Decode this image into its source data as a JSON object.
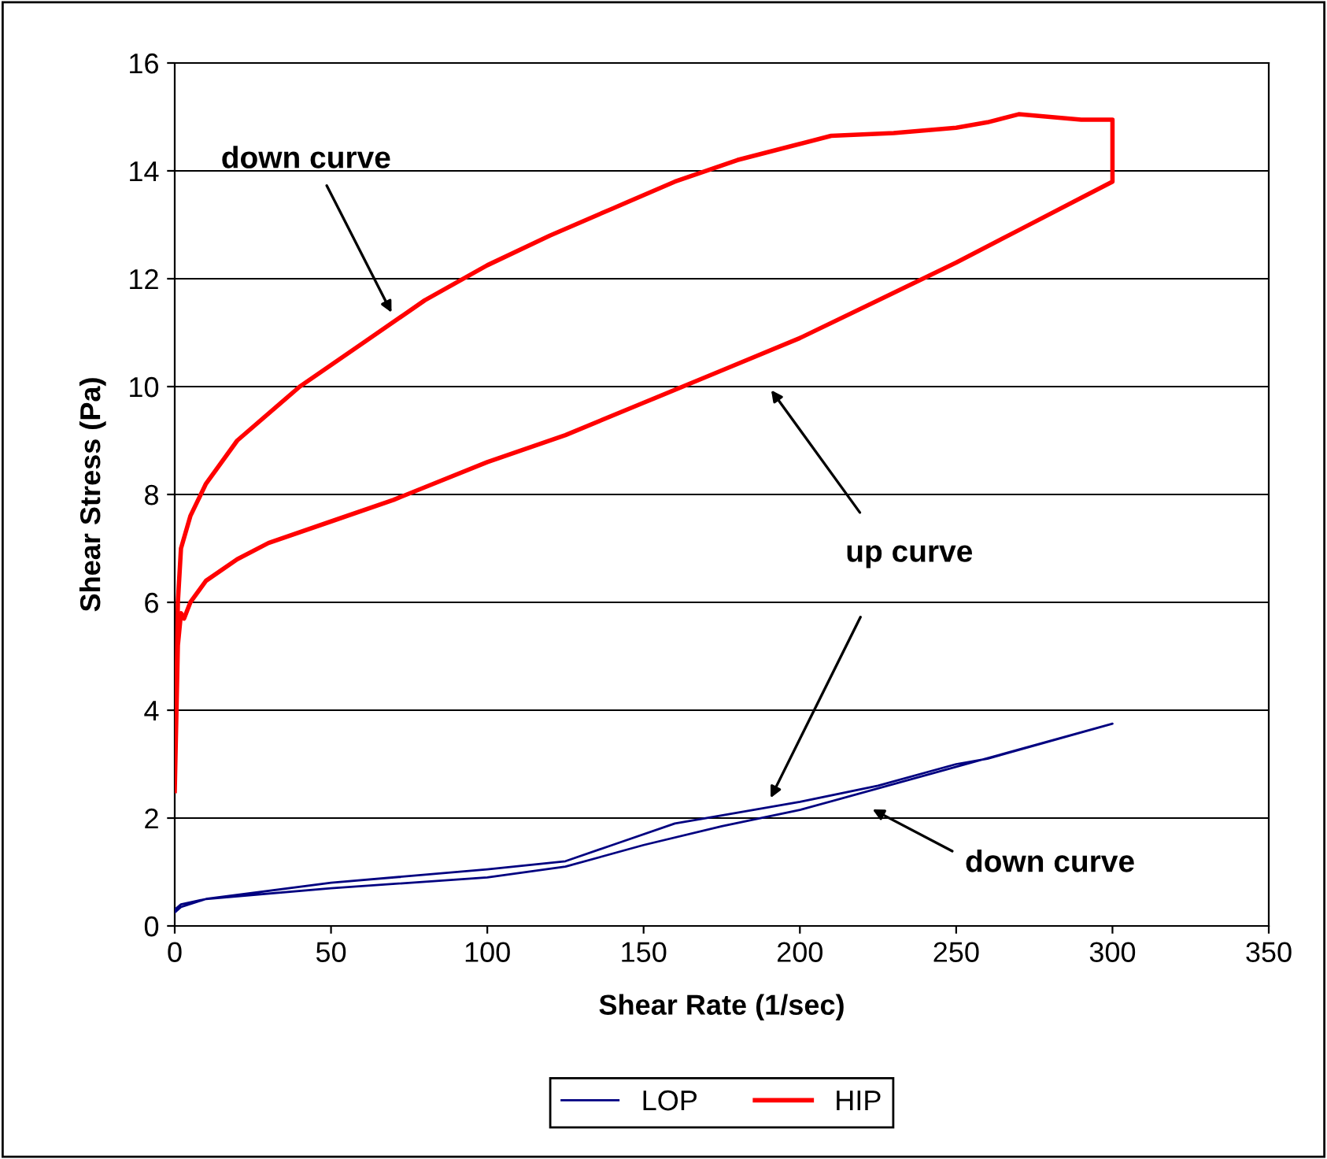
{
  "chart_data": {
    "type": "line",
    "xlabel": "Shear Rate (1/sec)",
    "ylabel": "Shear Stress (Pa)",
    "xlim": [
      0,
      350
    ],
    "xticks": [
      0,
      50,
      100,
      150,
      200,
      250,
      300,
      350
    ],
    "ylim": [
      0,
      16
    ],
    "yticks": [
      0,
      2,
      4,
      6,
      8,
      10,
      12,
      14,
      16
    ],
    "grid": "y",
    "legend": "bottom",
    "marker": "none",
    "line_style": "solid",
    "series": [
      {
        "name": "LOP",
        "color": "#000080",
        "x": [
          0,
          2,
          10,
          50,
          100,
          125,
          140,
          160,
          175,
          200,
          225,
          250,
          260,
          300,
          250,
          200,
          175,
          150,
          125,
          100,
          50,
          10,
          2,
          0
        ],
        "values": [
          0.3,
          0.4,
          0.5,
          0.8,
          1.05,
          1.2,
          1.5,
          1.9,
          2.05,
          2.3,
          2.6,
          3.0,
          3.1,
          3.75,
          2.95,
          2.15,
          1.85,
          1.5,
          1.1,
          0.9,
          0.7,
          0.5,
          0.35,
          0.25
        ]
      },
      {
        "name": "HIP",
        "color": "#ff0000",
        "x": [
          0,
          1,
          2,
          3,
          5,
          10,
          20,
          30,
          50,
          70,
          100,
          125,
          150,
          175,
          200,
          225,
          250,
          270,
          290,
          300,
          300,
          290,
          280,
          270,
          260,
          250,
          230,
          210,
          200,
          180,
          160,
          140,
          120,
          100,
          80,
          60,
          40,
          20,
          10,
          5,
          2,
          1,
          0.5
        ],
        "values": [
          2.5,
          5.2,
          5.8,
          5.7,
          6.0,
          6.4,
          6.8,
          7.1,
          7.5,
          7.9,
          8.6,
          9.1,
          9.7,
          10.3,
          10.9,
          11.6,
          12.3,
          12.9,
          13.5,
          13.8,
          14.95,
          14.95,
          15.0,
          15.05,
          14.9,
          14.8,
          14.7,
          14.65,
          14.5,
          14.2,
          13.8,
          13.3,
          12.8,
          12.25,
          11.6,
          10.8,
          10.0,
          9.0,
          8.2,
          7.6,
          7.0,
          6.0,
          4.0
        ]
      }
    ],
    "annotations": [
      "down curve",
      "up curve",
      "down curve"
    ]
  }
}
